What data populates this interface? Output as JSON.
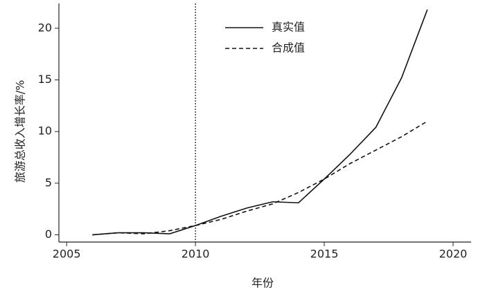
{
  "chart_data": {
    "type": "line",
    "x_label": "年份",
    "y_label": "旅游总收入增长率/%",
    "x": [
      2006,
      2007,
      2008,
      2009,
      2010,
      2011,
      2012,
      2013,
      2014,
      2015,
      2016,
      2017,
      2018,
      2019
    ],
    "series": [
      {
        "name": "真实值",
        "color": "#111111",
        "linestyle": "solid",
        "values": [
          0,
          0.2,
          0.2,
          0.1,
          0.9,
          1.8,
          2.6,
          3.2,
          3.1,
          5.4,
          7.8,
          10.4,
          15.2,
          21.8
        ]
      },
      {
        "name": "合成值",
        "color": "#111111",
        "linestyle": "dashed",
        "values": [
          0,
          0.2,
          0.1,
          0.4,
          0.9,
          1.5,
          2.3,
          3.0,
          4.1,
          5.4,
          6.9,
          8.2,
          9.5,
          11.0
        ]
      }
    ],
    "vline": 2010,
    "xlim": [
      2004.7,
      2020.7
    ],
    "xticks": [
      2005,
      2010,
      2015,
      2020
    ],
    "ylim": [
      -0.7,
      22.4
    ],
    "yticks": [
      0,
      5,
      10,
      15,
      20
    ],
    "legend": "top-center",
    "grid": false
  }
}
